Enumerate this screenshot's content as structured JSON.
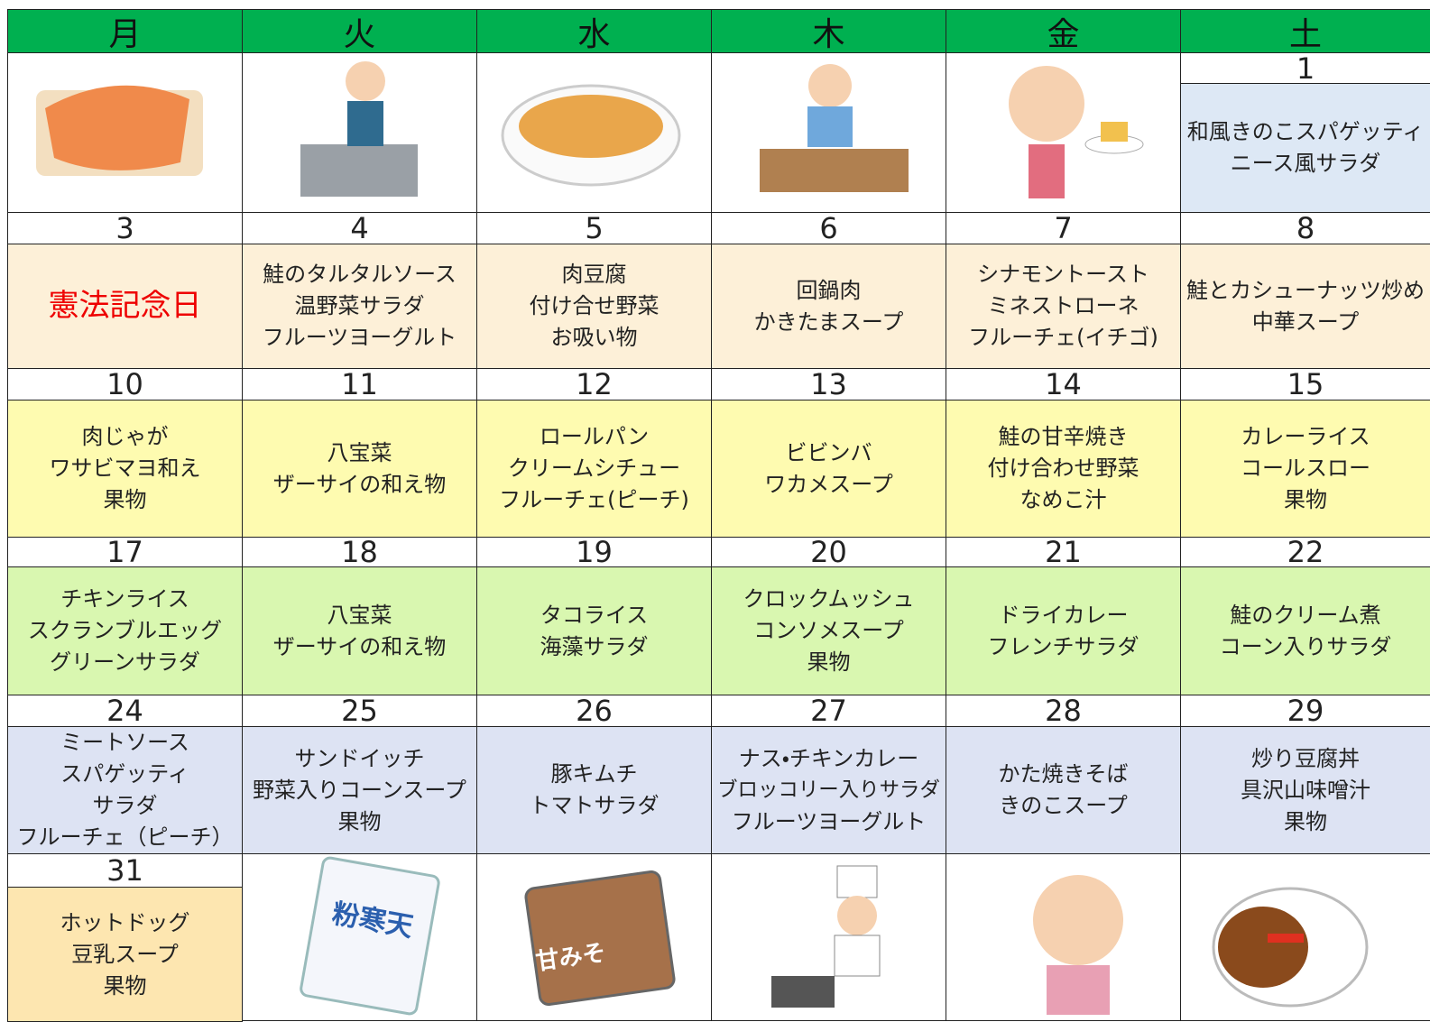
{
  "weekdays": [
    "月",
    "火",
    "水",
    "木",
    "金",
    "土"
  ],
  "weeks": [
    {
      "cells": [
        {
          "date": 1,
          "menu": [
            "和風きのこスパゲッティ",
            "ニース風サラダ"
          ]
        }
      ]
    },
    {
      "cells": [
        {
          "date": 3,
          "holiday": "憲法記念日"
        },
        {
          "date": 4,
          "menu": [
            "鮭のタルタルソース",
            "温野菜サラダ",
            "フルーツヨーグルト"
          ]
        },
        {
          "date": 5,
          "menu": [
            "肉豆腐",
            "付け合せ野菜",
            "お吸い物"
          ]
        },
        {
          "date": 6,
          "menu": [
            "回鍋肉",
            "かきたまスープ"
          ]
        },
        {
          "date": 7,
          "menu": [
            "シナモントースト",
            "ミネストローネ",
            "フルーチェ(イチゴ)"
          ]
        },
        {
          "date": 8,
          "menu": [
            "鮭とカシューナッツ炒め",
            "中華スープ"
          ]
        }
      ]
    },
    {
      "cells": [
        {
          "date": 10,
          "menu": [
            "肉じゃが",
            "ワサビマヨ和え",
            "果物"
          ]
        },
        {
          "date": 11,
          "menu": [
            "八宝菜",
            "ザーサイの和え物"
          ]
        },
        {
          "date": 12,
          "menu": [
            "ロールパン",
            "クリームシチュー",
            "フルーチェ(ピーチ)"
          ]
        },
        {
          "date": 13,
          "menu": [
            "ビビンバ",
            "ワカメスープ"
          ]
        },
        {
          "date": 14,
          "menu": [
            "鮭の甘辛焼き",
            "付け合わせ野菜",
            "なめこ汁"
          ]
        },
        {
          "date": 15,
          "menu": [
            "カレーライス",
            "コールスロー",
            "果物"
          ]
        }
      ]
    },
    {
      "cells": [
        {
          "date": 17,
          "menu": [
            "チキンライス",
            "スクランブルエッグ",
            "グリーンサラダ"
          ]
        },
        {
          "date": 18,
          "menu": [
            "八宝菜",
            "ザーサイの和え物"
          ]
        },
        {
          "date": 19,
          "menu": [
            "タコライス",
            "海藻サラダ"
          ]
        },
        {
          "date": 20,
          "menu": [
            "クロックムッシュ",
            "コンソメスープ",
            "果物"
          ]
        },
        {
          "date": 21,
          "menu": [
            "ドライカレー",
            "フレンチサラダ"
          ]
        },
        {
          "date": 22,
          "menu": [
            "鮭のクリーム煮",
            "コーン入りサラダ"
          ]
        }
      ]
    },
    {
      "cells": [
        {
          "date": 24,
          "menu": [
            "ミートソース",
            "スパゲッティ",
            "サラダ",
            "フルーチェ（ピーチ）"
          ]
        },
        {
          "date": 25,
          "menu": [
            "サンドイッチ",
            "野菜入りコーンスープ",
            "果物"
          ]
        },
        {
          "date": 26,
          "menu": [
            "豚キムチ",
            "トマトサラダ"
          ]
        },
        {
          "date": 27,
          "menu": [
            "ナス・チキンカレー",
            "ブロッコリー入りサラダ",
            "フルーツヨーグルト"
          ]
        },
        {
          "date": 28,
          "menu": [
            "かた焼きそば",
            "きのこスープ"
          ]
        },
        {
          "date": 29,
          "menu": [
            "炒り豆腐丼",
            "具沢山味噌汁",
            "果物"
          ]
        }
      ]
    },
    {
      "cells": [
        {
          "date": 31,
          "menu": [
            "ホットドッグ",
            "豆乳スープ",
            "果物"
          ]
        }
      ]
    }
  ],
  "illustrations": {
    "kanten": "粉寒天",
    "miso": "甘みそ"
  }
}
